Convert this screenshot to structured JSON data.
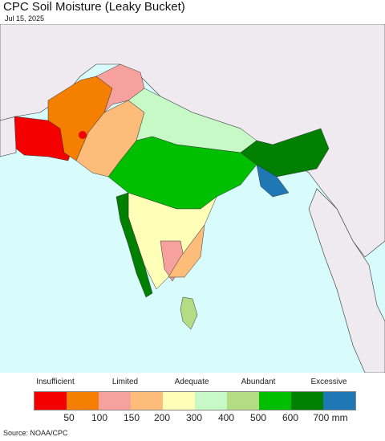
{
  "title": "CPC Soil Moisture (Leaky Bucket)",
  "date": "Jul 15, 2025",
  "legend": {
    "categories": [
      "Insufficient",
      "Limited",
      "Adequate",
      "Abundant",
      "Excessive"
    ],
    "colors": [
      "#f40000",
      "#f57f00",
      "#f7a19e",
      "#fdbc7a",
      "#ffffb8",
      "#c6f9c6",
      "#b4dc84",
      "#00bf00",
      "#008000",
      "#1f78b4"
    ],
    "ticks": [
      "50",
      "100",
      "150",
      "200",
      "300",
      "400",
      "500",
      "600",
      "700 mm"
    ]
  },
  "source": "Source: NOAA/CPC"
}
